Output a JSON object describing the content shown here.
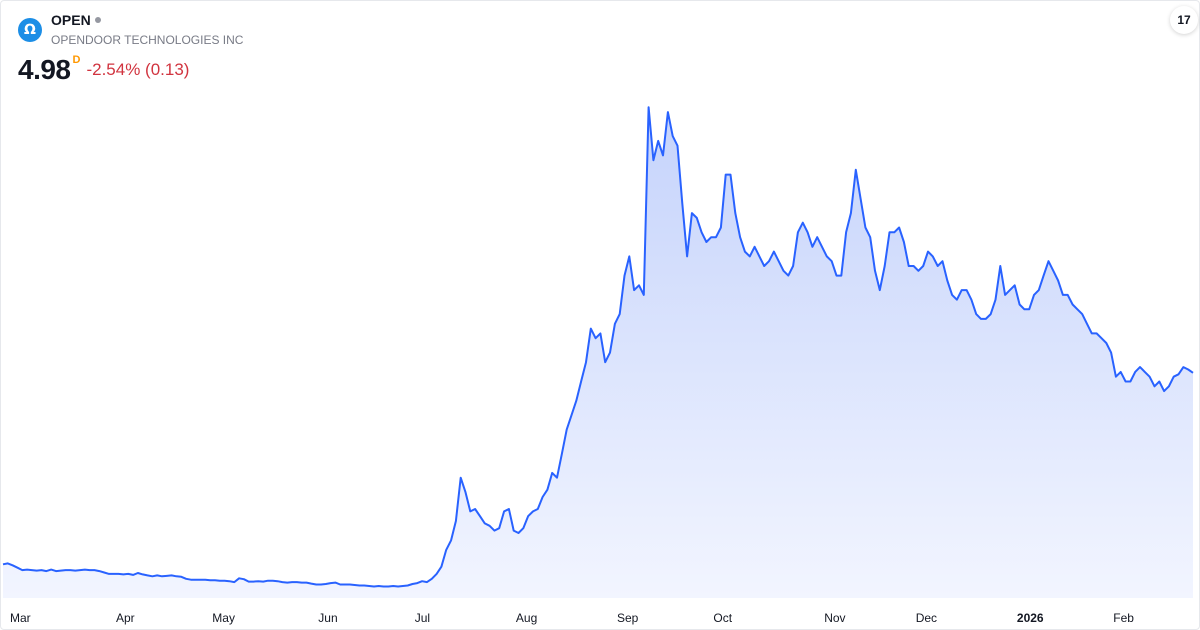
{
  "header": {
    "symbol": "OPEN",
    "company": "OPENDOOR TECHNOLOGIES INC",
    "price": "4.98",
    "price_flag": "D",
    "change": "-2.54% (0.13)",
    "logo_glyph": "Ω",
    "tv_glyph": "17"
  },
  "colors": {
    "line": "#2962ff",
    "fill_top": "#c5d3fb",
    "fill_bottom": "#f2f5ff",
    "negative": "#d1343f"
  },
  "chart_data": {
    "type": "area",
    "title": "",
    "xlabel": "",
    "ylabel": "",
    "ylim": [
      0.3,
      10.9
    ],
    "grid": false,
    "x_ticks": [
      {
        "label": "Mar",
        "index": 0,
        "bold": false
      },
      {
        "label": "Apr",
        "index": 22,
        "bold": false
      },
      {
        "label": "May",
        "index": 42,
        "bold": false
      },
      {
        "label": "Jun",
        "index": 64,
        "bold": false
      },
      {
        "label": "Jul",
        "index": 84,
        "bold": false
      },
      {
        "label": "Aug",
        "index": 105,
        "bold": false
      },
      {
        "label": "Sep",
        "index": 126,
        "bold": false
      },
      {
        "label": "Oct",
        "index": 146,
        "bold": false
      },
      {
        "label": "Nov",
        "index": 169,
        "bold": false
      },
      {
        "label": "Dec",
        "index": 188,
        "bold": false
      },
      {
        "label": "2026",
        "index": 209,
        "bold": true
      },
      {
        "label": "Feb",
        "index": 229,
        "bold": false
      }
    ],
    "series": [
      {
        "values": [
          1.0,
          1.02,
          0.98,
          0.93,
          0.88,
          0.89,
          0.88,
          0.87,
          0.88,
          0.86,
          0.89,
          0.86,
          0.87,
          0.88,
          0.88,
          0.87,
          0.88,
          0.89,
          0.88,
          0.88,
          0.86,
          0.83,
          0.8,
          0.8,
          0.8,
          0.79,
          0.8,
          0.78,
          0.82,
          0.79,
          0.77,
          0.75,
          0.77,
          0.75,
          0.76,
          0.77,
          0.75,
          0.74,
          0.7,
          0.68,
          0.68,
          0.68,
          0.68,
          0.67,
          0.67,
          0.66,
          0.66,
          0.65,
          0.63,
          0.71,
          0.69,
          0.64,
          0.64,
          0.65,
          0.64,
          0.66,
          0.66,
          0.65,
          0.63,
          0.62,
          0.63,
          0.63,
          0.62,
          0.62,
          0.6,
          0.58,
          0.58,
          0.59,
          0.61,
          0.62,
          0.58,
          0.58,
          0.58,
          0.57,
          0.56,
          0.56,
          0.55,
          0.54,
          0.55,
          0.54,
          0.54,
          0.55,
          0.54,
          0.55,
          0.56,
          0.59,
          0.61,
          0.65,
          0.63,
          0.7,
          0.8,
          0.95,
          1.3,
          1.5,
          1.9,
          2.8,
          2.5,
          2.1,
          2.15,
          2.0,
          1.85,
          1.8,
          1.7,
          1.75,
          2.1,
          2.15,
          1.7,
          1.65,
          1.75,
          2.0,
          2.1,
          2.15,
          2.4,
          2.55,
          2.9,
          2.8,
          3.3,
          3.8,
          4.1,
          4.4,
          4.8,
          5.2,
          5.9,
          5.7,
          5.8,
          5.2,
          5.4,
          6.0,
          6.2,
          7.0,
          7.4,
          6.7,
          6.8,
          6.6,
          10.5,
          9.4,
          9.8,
          9.5,
          10.4,
          9.9,
          9.7,
          8.5,
          7.4,
          8.3,
          8.2,
          7.9,
          7.7,
          7.8,
          7.8,
          8.0,
          9.1,
          9.1,
          8.3,
          7.8,
          7.5,
          7.4,
          7.6,
          7.4,
          7.2,
          7.3,
          7.5,
          7.3,
          7.1,
          7.0,
          7.2,
          7.9,
          8.1,
          7.9,
          7.6,
          7.8,
          7.6,
          7.4,
          7.3,
          7.0,
          7.0,
          7.9,
          8.3,
          9.2,
          8.6,
          8.0,
          7.8,
          7.1,
          6.7,
          7.2,
          7.9,
          7.9,
          8.0,
          7.7,
          7.2,
          7.2,
          7.1,
          7.2,
          7.5,
          7.4,
          7.2,
          7.3,
          6.9,
          6.6,
          6.5,
          6.7,
          6.7,
          6.5,
          6.2,
          6.1,
          6.1,
          6.2,
          6.5,
          7.2,
          6.6,
          6.7,
          6.8,
          6.4,
          6.3,
          6.3,
          6.6,
          6.7,
          7.0,
          7.3,
          7.1,
          6.9,
          6.6,
          6.6,
          6.4,
          6.3,
          6.2,
          6.0,
          5.8,
          5.8,
          5.7,
          5.6,
          5.4,
          4.9,
          5.0,
          4.8,
          4.8,
          5.0,
          5.1,
          5.0,
          4.9,
          4.7,
          4.8,
          4.6,
          4.7,
          4.9,
          4.95,
          5.1,
          5.05,
          4.98
        ]
      }
    ]
  }
}
